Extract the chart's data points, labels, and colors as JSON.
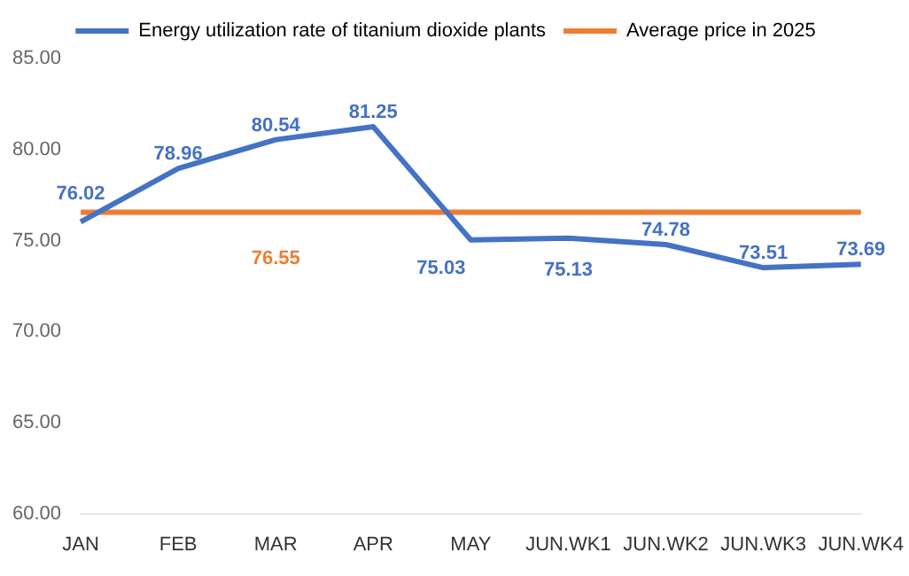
{
  "chart_data": {
    "type": "line",
    "categories": [
      "JAN",
      "FEB",
      "MAR",
      "APR",
      "MAY",
      "JUN.WK1",
      "JUN.WK2",
      "JUN.WK3",
      "JUN.WK4"
    ],
    "series": [
      {
        "name": "Energy utilization rate of titanium dioxide plants",
        "color": "#4472c4",
        "values": [
          76.02,
          78.96,
          80.54,
          81.25,
          75.03,
          75.13,
          74.78,
          73.51,
          73.69
        ],
        "value_labels": [
          "76.02",
          "78.96",
          "80.54",
          "81.25",
          "75.03",
          "75.13",
          "74.78",
          "73.51",
          "73.69"
        ]
      },
      {
        "name": "Average price in 2025",
        "color": "#ed7d31",
        "values": [
          76.55,
          76.55,
          76.55,
          76.55,
          76.55,
          76.55,
          76.55,
          76.55,
          76.55
        ],
        "value_labels": [
          null,
          null,
          "76.55",
          null,
          null,
          null,
          null,
          null,
          null
        ]
      }
    ],
    "ylim": [
      60,
      85
    ],
    "yticks": [
      {
        "value": 60,
        "label": "60.00"
      },
      {
        "value": 65,
        "label": "65.00"
      },
      {
        "value": 70,
        "label": "70.00"
      },
      {
        "value": 75,
        "label": "75.00"
      },
      {
        "value": 80,
        "label": "80.00"
      },
      {
        "value": 85,
        "label": "85.00"
      }
    ],
    "grid": false,
    "legend": "top",
    "marker": "none",
    "line_style": "solid"
  }
}
